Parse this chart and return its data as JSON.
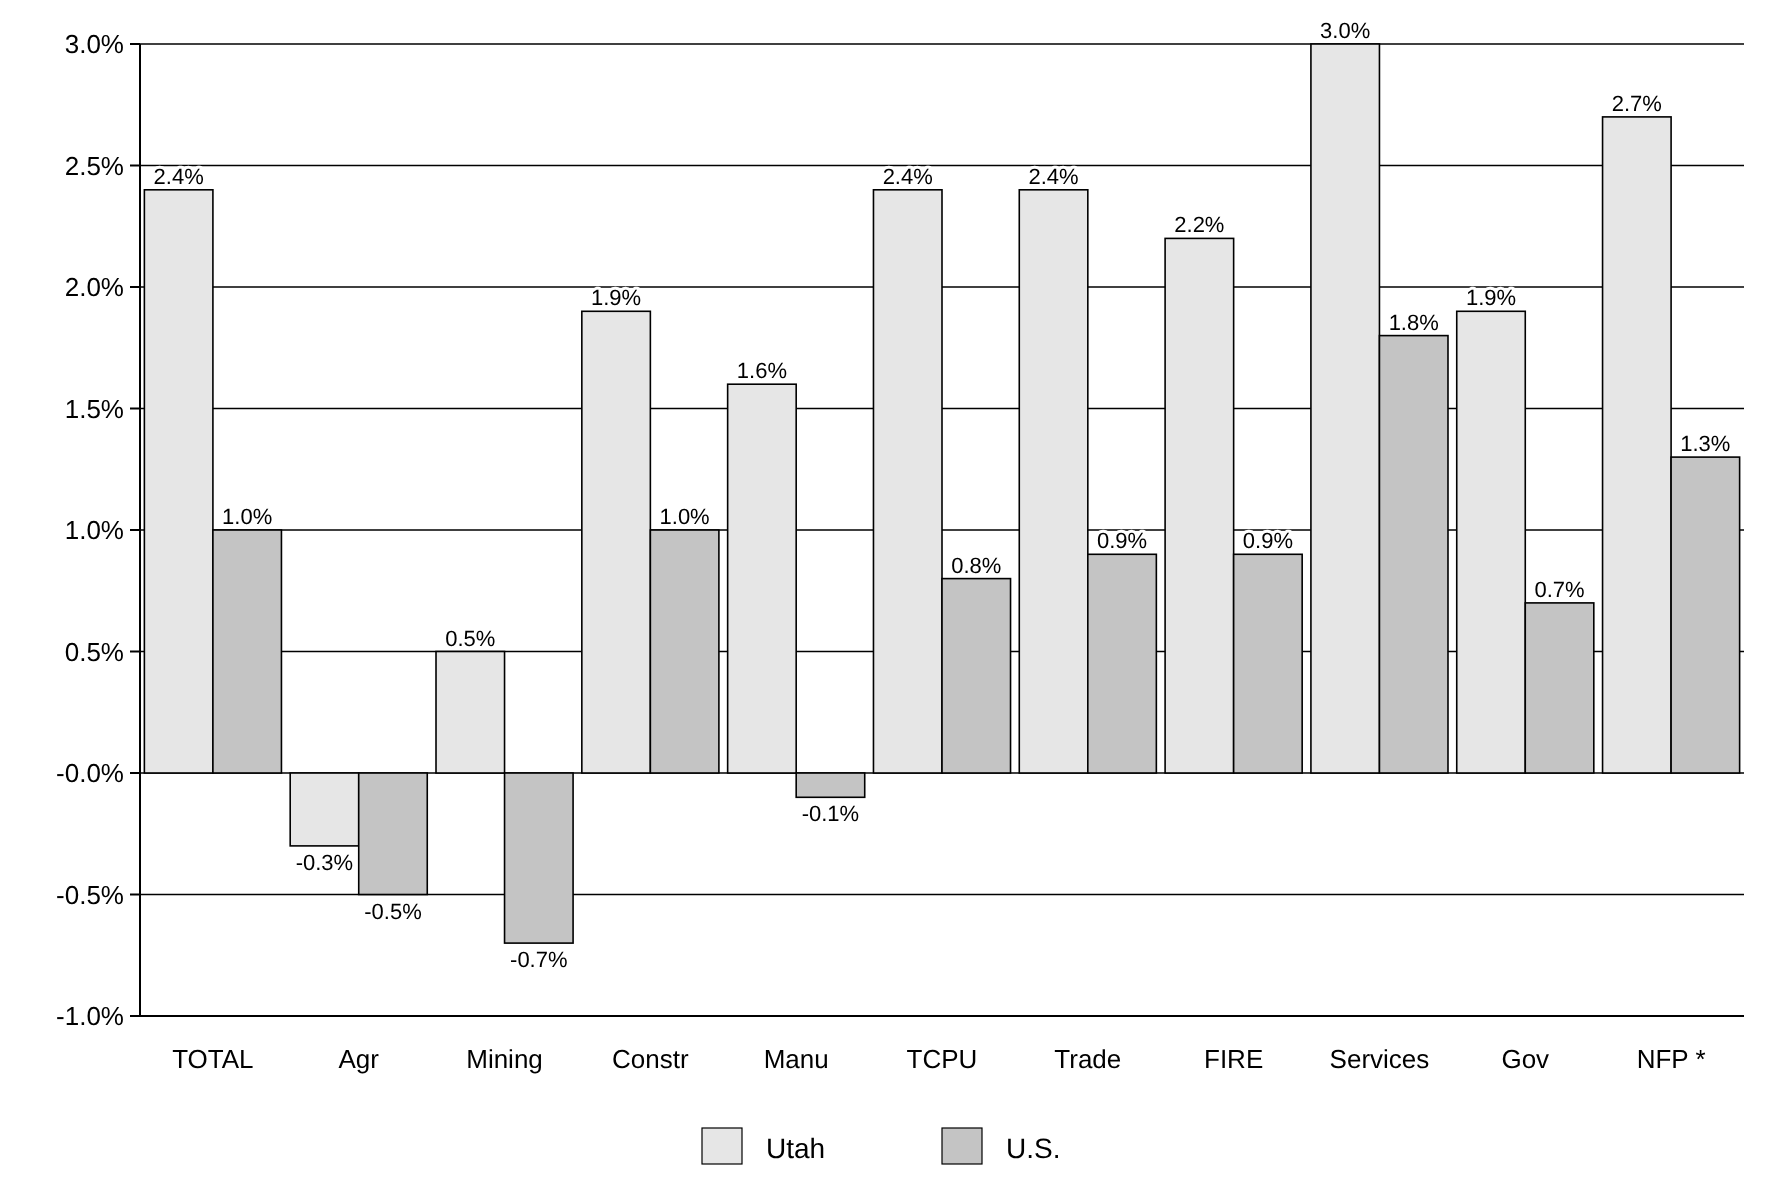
{
  "chart_data": {
    "type": "bar",
    "categories": [
      "TOTAL",
      "Agr",
      "Mining",
      "Constr",
      "Manu",
      "TCPU",
      "Trade",
      "FIRE",
      "Services",
      "Gov",
      "NFP *"
    ],
    "series": [
      {
        "name": "Utah",
        "color": "#e6e6e6",
        "values": [
          2.4,
          -0.3,
          0.5,
          1.9,
          1.6,
          2.4,
          2.4,
          2.2,
          3.0,
          1.9,
          2.7
        ],
        "value_labels": [
          "2.4%",
          "-0.3%",
          "0.5%",
          "1.9%",
          "1.6%",
          "2.4%",
          "2.4%",
          "2.2%",
          "3.0%",
          "1.9%",
          "2.7%"
        ]
      },
      {
        "name": "U.S.",
        "color": "#c4c4c4",
        "values": [
          1.0,
          -0.5,
          -0.7,
          1.0,
          -0.1,
          0.8,
          0.9,
          0.9,
          1.8,
          0.7,
          1.3
        ],
        "value_labels": [
          "1.0%",
          "-0.5%",
          "-0.7%",
          "1.0%",
          "-0.1%",
          "0.8%",
          "0.9%",
          "0.9%",
          "1.8%",
          "0.7%",
          "1.3%"
        ]
      }
    ],
    "ylim": [
      -1.0,
      3.0
    ],
    "yticks": [
      {
        "value": -1.0,
        "label": "-1.0%"
      },
      {
        "value": -0.5,
        "label": "-0.5%"
      },
      {
        "value": 0,
        "label": "-0.0%"
      },
      {
        "value": 0.5,
        "label": "0.5%"
      },
      {
        "value": 1.0,
        "label": "1.0%"
      },
      {
        "value": 1.5,
        "label": "1.5%"
      },
      {
        "value": 2.0,
        "label": "2.0%"
      },
      {
        "value": 2.5,
        "label": "2.5%"
      },
      {
        "value": 3.0,
        "label": "3.0%"
      }
    ],
    "grid": "y",
    "legend": "bottom"
  }
}
